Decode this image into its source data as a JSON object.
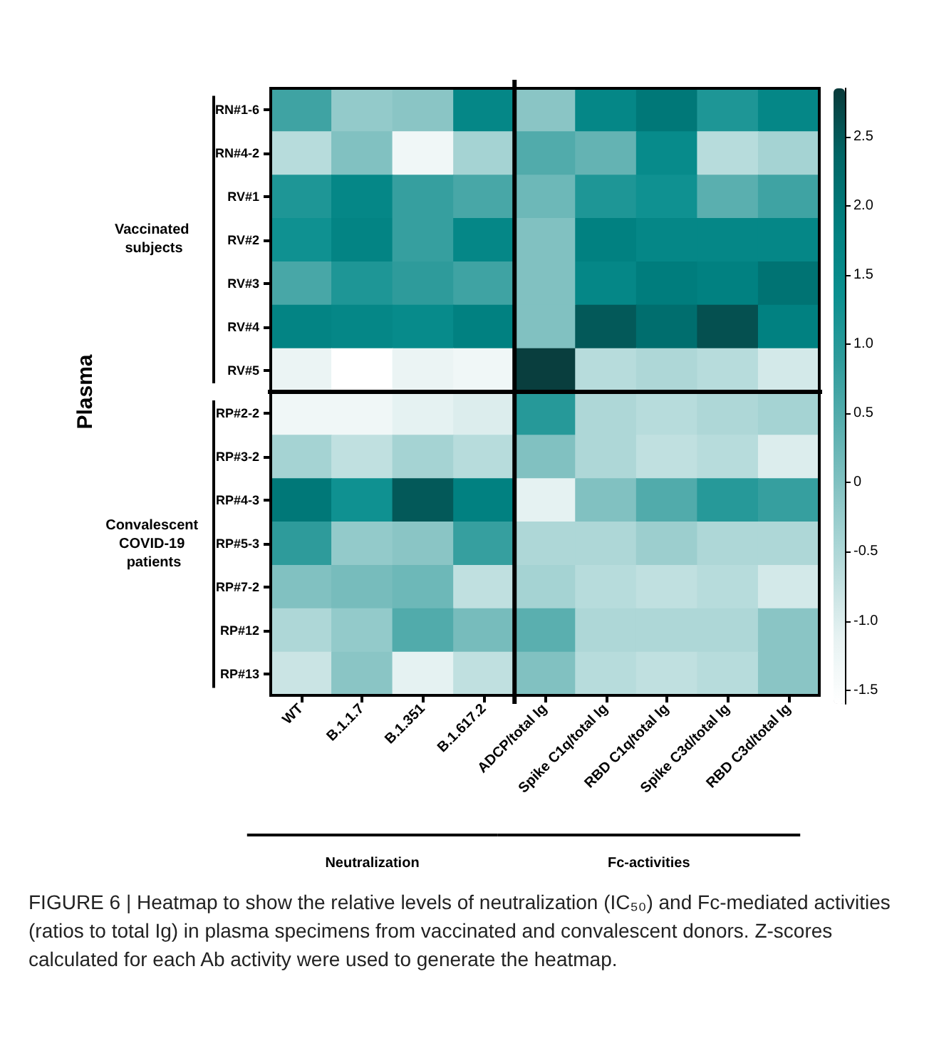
{
  "chart_data": {
    "type": "heatmap",
    "categories": [
      "WT",
      "B.1.1.7",
      "B.1.351",
      "B.1.617.2",
      "ADCP/total Ig",
      "Spike C1q/total Ig",
      "RBD C1q/total Ig",
      "Spike C3d/total Ig",
      "RBD C3d/total Ig"
    ],
    "y_categories": [
      "RN#1-6",
      "RN#4-2",
      "RV#1",
      "RV#2",
      "RV#3",
      "RV#4",
      "RV#5",
      "RP#2-2",
      "RP#3-2",
      "RP#4-3",
      "RP#5-3",
      "RP#7-2",
      "RP#12",
      "RP#13"
    ],
    "cells": [
      [
        0.7,
        -0.2,
        -0.1,
        1.6,
        -0.1,
        1.6,
        2.0,
        1.1,
        1.6
      ],
      [
        -0.6,
        0.0,
        -1.3,
        -0.4,
        0.5,
        0.3,
        1.5,
        -0.6,
        -0.4
      ],
      [
        1.1,
        1.6,
        0.8,
        0.6,
        0.2,
        1.1,
        1.3,
        0.4,
        0.7
      ],
      [
        1.3,
        1.7,
        0.8,
        1.6,
        0.0,
        1.8,
        1.6,
        1.6,
        1.6
      ],
      [
        0.6,
        1.1,
        0.9,
        0.7,
        0.0,
        1.6,
        1.9,
        1.8,
        2.1
      ],
      [
        1.7,
        1.6,
        1.5,
        1.8,
        0.0,
        2.5,
        2.2,
        2.6,
        1.8
      ],
      [
        -1.2,
        -1.6,
        -1.2,
        -1.3,
        2.8,
        -0.6,
        -0.5,
        -0.6,
        -0.9
      ],
      [
        -1.3,
        -1.3,
        -1.1,
        -1.0,
        1.0,
        -0.5,
        -0.6,
        -0.5,
        -0.4
      ],
      [
        -0.4,
        -0.7,
        -0.4,
        -0.6,
        0.0,
        -0.5,
        -0.7,
        -0.6,
        -1.0
      ],
      [
        2.0,
        1.3,
        2.5,
        1.8,
        -1.1,
        0.0,
        0.5,
        1.0,
        0.8
      ],
      [
        0.9,
        -0.2,
        -0.1,
        0.8,
        -0.5,
        -0.5,
        -0.3,
        -0.5,
        -0.5
      ],
      [
        0.0,
        0.1,
        0.2,
        -0.7,
        -0.4,
        -0.6,
        -0.7,
        -0.6,
        -0.9
      ],
      [
        -0.5,
        -0.2,
        0.5,
        0.1,
        0.4,
        -0.5,
        -0.5,
        -0.5,
        -0.1
      ],
      [
        -0.8,
        -0.1,
        -1.1,
        -0.7,
        0.0,
        -0.6,
        -0.7,
        -0.6,
        -0.1
      ]
    ],
    "clim": [
      -1.6,
      2.85
    ],
    "cticks": [
      {
        "value": 2.5,
        "label": "2.5"
      },
      {
        "value": 2,
        "label": "2.0"
      },
      {
        "value": 1.5,
        "label": "1.5"
      },
      {
        "value": 1,
        "label": "1.0"
      },
      {
        "value": 0.5,
        "label": "0.5"
      },
      0,
      {
        "value": -0.5,
        "label": "-0.5"
      },
      {
        "value": -1,
        "label": "-1.0"
      },
      {
        "value": -1.5,
        "label": "-1.5"
      }
    ],
    "annotations": [
      "Plasma",
      "Vaccinated subjects",
      "Convalescent COVID-19 patients",
      "Neutralization",
      "Fc-activities",
      "FIGURE 6 | Heatmap to show the relative levels of neutralization (IC₅₀) and Fc-mediated activities (ratios to total Ig) in plasma specimens from vaccinated and convalescent donors. Z-scores calculated for each Ab activity were used to generate the heatmap."
    ]
  }
}
